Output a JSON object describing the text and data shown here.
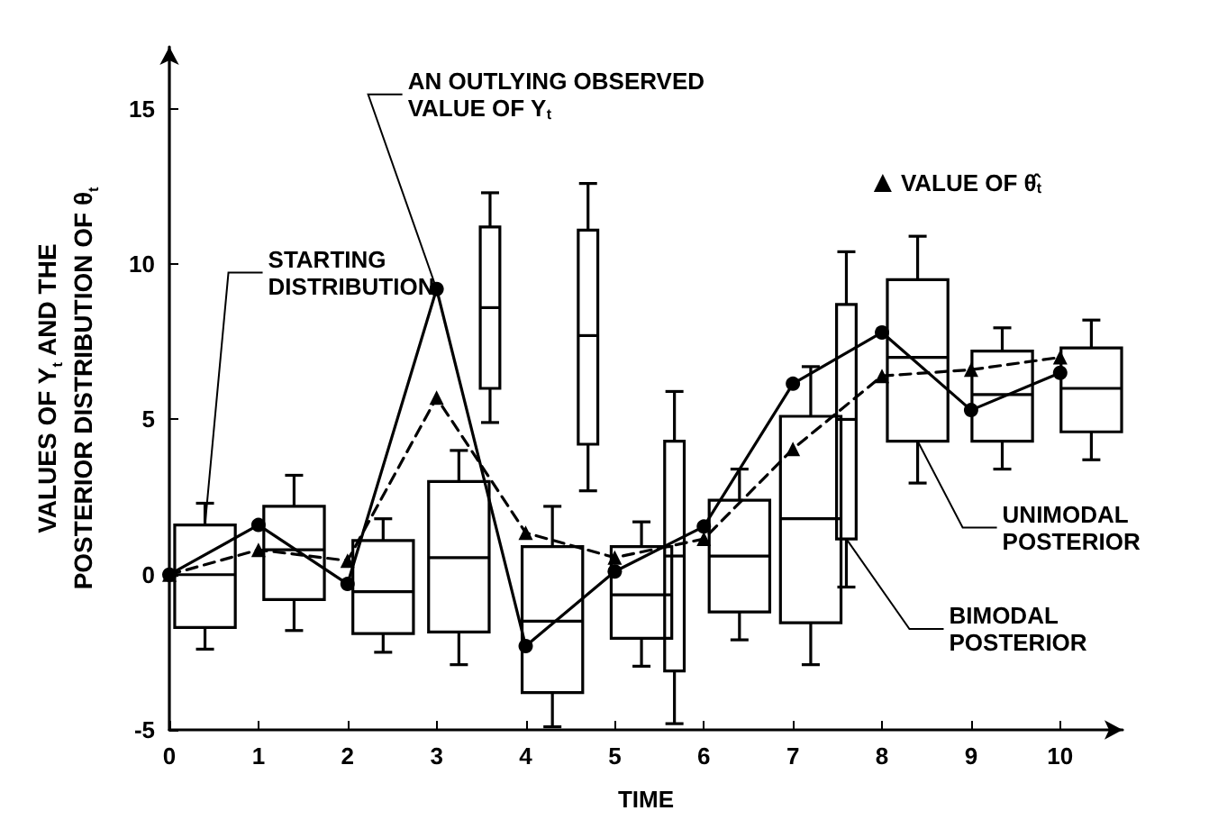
{
  "chart_data": {
    "type": "box",
    "xlabel": "TIME",
    "ylabel": "VALUES OF Y$_{t}$ AND THE\nPOSTERIOR DISTRIBUTION OF θ$_{t}$",
    "xlim": [
      0,
      10.7
    ],
    "xticks": [
      0,
      1,
      2,
      3,
      4,
      5,
      6,
      7,
      8,
      9,
      10
    ],
    "ylim": [
      -5,
      17
    ],
    "yticks": [
      -5,
      0,
      5,
      10,
      15
    ],
    "grid": false,
    "legend": "top right",
    "series": [
      {
        "color": "#000000",
        "x": [
          0.4,
          1.4,
          2.4,
          3.25,
          4.3,
          5.3,
          6.4,
          7.2,
          8.4,
          9.35,
          10.35
        ],
        "boxes": [
          {
            "low": -2.4,
            "q1": -1.7,
            "median": 0,
            "q3": 1.6,
            "high": 2.3
          },
          {
            "low": -1.8,
            "q1": -0.8,
            "median": 0.8,
            "q3": 2.2,
            "high": 3.2
          },
          {
            "low": -2.5,
            "q1": -1.9,
            "median": -0.55,
            "q3": 1.1,
            "high": 1.8
          },
          {
            "low": -2.9,
            "q1": -1.85,
            "median": 0.55,
            "q3": 3.0,
            "high": 4.0
          },
          {
            "low": -4.9,
            "q1": -3.8,
            "median": -1.5,
            "q3": 0.9,
            "high": 2.2
          },
          {
            "low": -2.95,
            "q1": -2.05,
            "median": -0.65,
            "q3": 0.9,
            "high": 1.7
          },
          {
            "low": -2.1,
            "q1": -1.2,
            "median": 0.6,
            "q3": 2.4,
            "high": 3.4
          },
          {
            "low": -2.9,
            "q1": -1.55,
            "median": 1.8,
            "q3": 5.1,
            "high": 6.7
          },
          {
            "low": 2.95,
            "q1": 4.3,
            "median": 7.0,
            "q3": 9.5,
            "high": 10.9
          },
          {
            "low": 3.4,
            "q1": 4.3,
            "median": 5.8,
            "q3": 7.2,
            "high": 7.95
          },
          {
            "low": 3.7,
            "q1": 4.6,
            "median": 6.0,
            "q3": 7.3,
            "high": 8.2
          }
        ]
      },
      {
        "color": "#000000",
        "x": [
          3.6,
          4.7,
          5.67,
          7.6
        ],
        "boxes": [
          {
            "low": 4.9,
            "q1": 6.0,
            "median": 8.6,
            "q3": 11.2,
            "high": 12.3
          },
          {
            "low": 2.7,
            "q1": 4.2,
            "median": 7.7,
            "q3": 11.1,
            "high": 12.6
          },
          {
            "low": -4.8,
            "q1": -3.1,
            "median": 0.6,
            "q3": 4.3,
            "high": 5.9
          },
          {
            "low": -0.4,
            "q1": 1.15,
            "median": 5.0,
            "q3": 8.7,
            "high": 10.4
          }
        ]
      },
      {
        "type": "line",
        "color": "#000000",
        "marker": "circle",
        "line_style": "solid",
        "x": [
          0,
          1,
          2,
          3,
          4,
          5,
          6,
          7,
          8,
          9,
          10
        ],
        "values": [
          0,
          1.6,
          -0.3,
          9.2,
          -2.3,
          0.1,
          1.55,
          6.15,
          7.8,
          5.3,
          6.5
        ]
      },
      {
        "type": "line",
        "name": "VALUE OF θ̂$_{t}$",
        "color": "#000000",
        "marker": "triangle",
        "line_style": "dashed",
        "x": [
          0,
          1,
          2,
          3,
          4,
          5,
          6,
          7,
          8,
          9,
          10
        ],
        "values": [
          0,
          0.8,
          0.45,
          5.7,
          1.35,
          0.55,
          1.15,
          4.05,
          6.4,
          6.6,
          7.0
        ]
      }
    ],
    "annotations": [
      {
        "text": "STARTING\nDISTRIBUTION",
        "x": 0.4,
        "y": 1.6
      },
      {
        "text": "AN OUTLYING OBSERVED\nVALUE OF Y$_{t}$",
        "x": 3,
        "y": 9.2
      },
      {
        "text": "UNIMODAL\nPOSTERIOR",
        "x": 8.4,
        "y": 4.3
      },
      {
        "text": "BIMODAL\nPOSTERIOR",
        "x": 7.6,
        "y": 1.15
      }
    ]
  }
}
